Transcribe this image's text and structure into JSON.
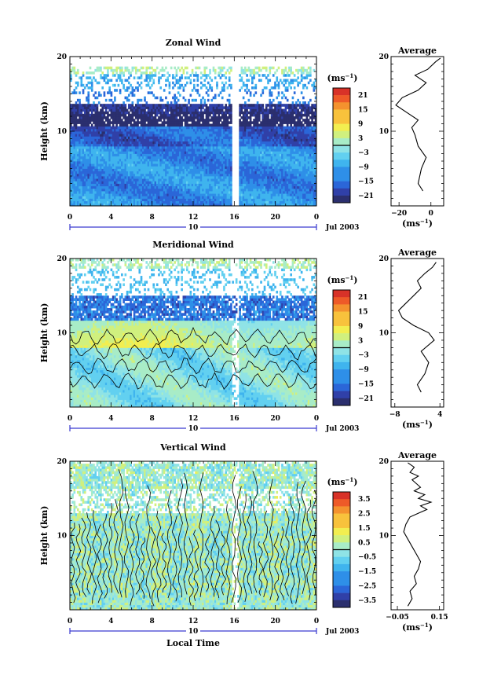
{
  "chart_data": [
    {
      "type": "heatmap",
      "title": "Zonal Wind",
      "ylabel": "Height (km)",
      "xlabel": "",
      "y_ticks": [
        "10",
        "20"
      ],
      "ylim": [
        0,
        20
      ],
      "x_ticks": [
        "0",
        "4",
        "8",
        "12",
        "16",
        "20",
        "0"
      ],
      "xlim": [
        0,
        24
      ],
      "day_label": "10",
      "date_label": "Jul 2003",
      "colorbar": {
        "unit_text": "(ms",
        "unit_exp": "−1",
        "ticks": [
          "21",
          "15",
          "9",
          "3",
          "−3",
          "−9",
          "−15",
          "−21"
        ],
        "range": [
          -24,
          24
        ]
      },
      "average": {
        "title": "Average",
        "xlabel_text": "(ms",
        "xlabel_exp": "−1",
        "x_ticks": [
          "−20",
          "0"
        ],
        "xlim": [
          -25,
          8
        ],
        "y_ticks": [
          "10",
          "20"
        ],
        "profile": [
          [
            -5,
            2
          ],
          [
            -8,
            3
          ],
          [
            -6,
            5
          ],
          [
            -3,
            6.5
          ],
          [
            -8,
            8
          ],
          [
            -10,
            9.5
          ],
          [
            -12,
            10.5
          ],
          [
            -8,
            11.5
          ],
          [
            -15,
            12.5
          ],
          [
            -22,
            13.5
          ],
          [
            -18,
            14.5
          ],
          [
            -8,
            15.5
          ],
          [
            -3,
            16.5
          ],
          [
            -10,
            17.5
          ],
          [
            -2,
            18.3
          ],
          [
            3,
            19.3
          ],
          [
            6,
            19.8
          ]
        ]
      }
    },
    {
      "type": "heatmap",
      "title": "Meridional Wind",
      "ylabel": "Height (km)",
      "xlabel": "",
      "y_ticks": [
        "10",
        "20"
      ],
      "ylim": [
        0,
        20
      ],
      "x_ticks": [
        "0",
        "4",
        "8",
        "12",
        "16",
        "20",
        "0"
      ],
      "xlim": [
        0,
        24
      ],
      "day_label": "10",
      "date_label": "Jul 2003",
      "colorbar": {
        "unit_text": "(ms",
        "unit_exp": "−1",
        "ticks": [
          "21",
          "15",
          "9",
          "3",
          "−3",
          "−9",
          "−15",
          "−21"
        ],
        "range": [
          -24,
          24
        ]
      },
      "average": {
        "title": "Average",
        "xlabel_text": "(ms",
        "xlabel_exp": "−1",
        "x_ticks": [
          "−8",
          "4"
        ],
        "xlim": [
          -9,
          5
        ],
        "y_ticks": [
          "10",
          "20"
        ],
        "profile": [
          [
            -1,
            2
          ],
          [
            -2,
            3
          ],
          [
            0,
            4.5
          ],
          [
            1,
            6
          ],
          [
            -1,
            7.5
          ],
          [
            2.5,
            9
          ],
          [
            1,
            10
          ],
          [
            -3,
            11
          ],
          [
            -6,
            12
          ],
          [
            -7,
            13
          ],
          [
            -5,
            14
          ],
          [
            -3,
            15
          ],
          [
            -1,
            16
          ],
          [
            -2,
            17
          ],
          [
            0,
            18
          ],
          [
            2,
            18.8
          ],
          [
            3,
            19.5
          ]
        ]
      }
    },
    {
      "type": "heatmap",
      "title": "Vertical Wind",
      "ylabel": "Height (km)",
      "xlabel": "Local Time",
      "y_ticks": [
        "10",
        "20"
      ],
      "ylim": [
        0,
        20
      ],
      "x_ticks": [
        "0",
        "4",
        "8",
        "12",
        "16",
        "20",
        "0"
      ],
      "xlim": [
        0,
        24
      ],
      "day_label": "10",
      "date_label": "Jul 2003",
      "colorbar": {
        "unit_text": "(ms",
        "unit_exp": "−1",
        "ticks": [
          "3.5",
          "2.5",
          "1.5",
          "0.5",
          "−0.5",
          "−1.5",
          "−2.5",
          "−3.5"
        ],
        "range": [
          -4,
          4
        ]
      },
      "average": {
        "title": "Average",
        "xlabel_text": "(ms",
        "xlabel_exp": "−1",
        "x_ticks": [
          "−0.05",
          "0.15"
        ],
        "xlim": [
          -0.08,
          0.17
        ],
        "y_ticks": [
          "10",
          "20"
        ],
        "profile": [
          [
            0.0,
            0.5
          ],
          [
            0.02,
            1.5
          ],
          [
            0.01,
            2.5
          ],
          [
            0.04,
            3.5
          ],
          [
            0.03,
            4.5
          ],
          [
            0.05,
            5.5
          ],
          [
            0.06,
            6.5
          ],
          [
            0.04,
            7.5
          ],
          [
            0.02,
            8.5
          ],
          [
            0.0,
            9.5
          ],
          [
            -0.02,
            10.5
          ],
          [
            -0.01,
            11.5
          ],
          [
            0.01,
            12.5
          ],
          [
            0.05,
            13.0
          ],
          [
            0.09,
            13.5
          ],
          [
            0.06,
            14.0
          ],
          [
            0.11,
            14.5
          ],
          [
            0.05,
            15.0
          ],
          [
            0.08,
            15.5
          ],
          [
            0.03,
            16.0
          ],
          [
            0.06,
            16.5
          ],
          [
            0.02,
            17.5
          ],
          [
            0.05,
            18.0
          ],
          [
            0.01,
            18.5
          ],
          [
            0.03,
            19.2
          ],
          [
            0.0,
            19.8
          ]
        ]
      }
    }
  ]
}
